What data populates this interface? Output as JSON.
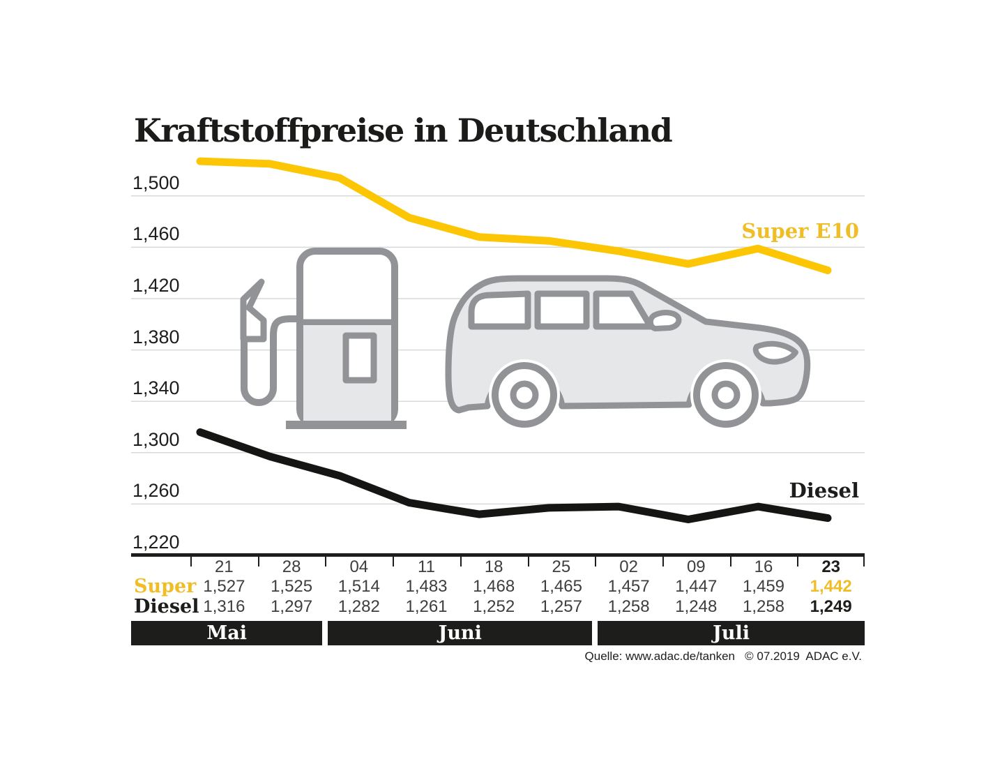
{
  "title": "Kraftstoffpreise in Deutschland",
  "source_note": "Quelle: www.adac.de/tanken   © 07.2019  ADAC e.V.",
  "colors": {
    "super_line": "#FCC605",
    "super_text": "#EFBD25",
    "diesel_line": "#151513",
    "axis_black": "#1D1D1B",
    "grid": "#D8D9DA",
    "value_text": "#3E3E3D",
    "band_bg": "#1D1D1B",
    "band_text": "#FFFFFF",
    "icon_stroke": "#919396",
    "icon_fill": "#E6E7E8"
  },
  "chart_data": {
    "type": "line",
    "title": "Kraftstoffpreise in Deutschland",
    "categories": [
      "21",
      "28",
      "04",
      "11",
      "18",
      "25",
      "02",
      "09",
      "16",
      "23"
    ],
    "month_groups": [
      {
        "label": "Mai",
        "span": 2
      },
      {
        "label": "Juni",
        "span": 4
      },
      {
        "label": "Juli",
        "span": 4
      }
    ],
    "y_ticks": [
      1500,
      1460,
      1420,
      1380,
      1340,
      1300,
      1260,
      1220
    ],
    "ylim": [
      1220,
      1540
    ],
    "grid": true,
    "decimal_format": "comma",
    "legend_position": "inline-right",
    "series": [
      {
        "name": "Super",
        "chart_label": "Super E10",
        "values": [
          1527,
          1525,
          1514,
          1483,
          1468,
          1465,
          1457,
          1447,
          1459,
          1442
        ]
      },
      {
        "name": "Diesel",
        "chart_label": "Diesel",
        "values": [
          1316,
          1297,
          1282,
          1261,
          1252,
          1257,
          1258,
          1248,
          1258,
          1249
        ]
      }
    ]
  }
}
